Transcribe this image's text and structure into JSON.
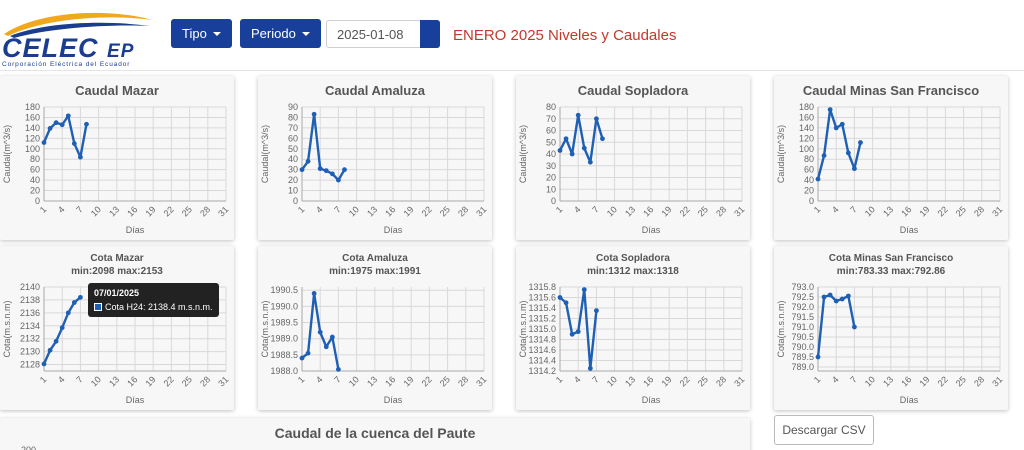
{
  "header": {
    "logo_text": "CELEC",
    "logo_suffix": "EP",
    "logo_subtitle": "Corporación Eléctrica del Ecuador",
    "tipo_label": "Tipo",
    "periodo_label": "Periodo",
    "date_value": "2025-01-08",
    "page_title": "ENERO 2025 Niveles y Caudales",
    "colors": {
      "brand_blue": "#183f9a",
      "title_red": "#c0392b",
      "series": "#1f5fb4"
    }
  },
  "tooltip": {
    "title": "07/01/2025",
    "text": "Cota H24: 2138.4 m.s.n.m."
  },
  "download_label": "Descargar CSV",
  "x_ticks": [
    "1",
    "4",
    "7",
    "10",
    "13",
    "16",
    "19",
    "22",
    "25",
    "28",
    "31"
  ],
  "charts": [
    {
      "title": "Caudal Mazar",
      "ylabel": "Caudal(m^3/s)",
      "xlabel": "Días",
      "yticks": [
        "0",
        "20",
        "40",
        "60",
        "80",
        "100",
        "120",
        "140",
        "160",
        "180"
      ]
    },
    {
      "title": "Caudal Amaluza",
      "ylabel": "Caudal(m^3/s)",
      "xlabel": "Días",
      "yticks": [
        "0",
        "10",
        "20",
        "30",
        "40",
        "50",
        "60",
        "70",
        "80",
        "90"
      ]
    },
    {
      "title": "Caudal Sopladora",
      "ylabel": "Caudal(m^3/s)",
      "xlabel": "Días",
      "yticks": [
        "0",
        "10",
        "20",
        "30",
        "40",
        "50",
        "60",
        "70",
        "80"
      ]
    },
    {
      "title": "Caudal Minas San Francisco",
      "ylabel": "Caudal(m^3/s)",
      "xlabel": "Días",
      "yticks": [
        "0",
        "20",
        "40",
        "60",
        "80",
        "100",
        "120",
        "140",
        "160",
        "180"
      ]
    },
    {
      "title": "Cota Mazar",
      "subtitle": "min:2098     max:2153",
      "ylabel": "Cota(m.s.n.m)",
      "xlabel": "Días",
      "yticks": [
        "2128",
        "2130",
        "2132",
        "2134",
        "2136",
        "2138",
        "2140"
      ]
    },
    {
      "title": "Cota Amaluza",
      "subtitle": "min:1975     max:1991",
      "ylabel": "Cota(m.s.n.m)",
      "xlabel": "Días",
      "yticks": [
        "1988.0",
        "1988.5",
        "1989.0",
        "1989.5",
        "1990.0",
        "1990.5"
      ]
    },
    {
      "title": "Cota Sopladora",
      "subtitle": "min:1312     max:1318",
      "ylabel": "Cota(m.s.n.m)",
      "xlabel": "Días",
      "yticks": [
        "1314.2",
        "1314.4",
        "1314.6",
        "1314.8",
        "1315.0",
        "1315.2",
        "1315.4",
        "1315.6",
        "1315.8"
      ]
    },
    {
      "title": "Cota Minas San Francisco",
      "subtitle": "min:783.33     max:792.86",
      "ylabel": "Cota(m.s.n.m)",
      "xlabel": "Días",
      "yticks": [
        "789.0",
        "789.5",
        "790.0",
        "790.5",
        "791.0",
        "791.5",
        "792.0",
        "792.5",
        "793.0"
      ]
    }
  ],
  "basin_title": "Caudal de la cuenca del Paute",
  "basin_ytick": "200",
  "chart_data": [
    {
      "type": "line",
      "title": "Caudal Mazar",
      "xlim": [
        1,
        31
      ],
      "ylim": [
        0,
        180
      ],
      "x": [
        1,
        2,
        3,
        4,
        5,
        6,
        7,
        8
      ],
      "values": [
        112,
        139,
        150,
        146,
        163,
        110,
        84,
        147
      ]
    },
    {
      "type": "line",
      "title": "Caudal Amaluza",
      "xlim": [
        1,
        31
      ],
      "ylim": [
        0,
        90
      ],
      "x": [
        1,
        2,
        3,
        4,
        5,
        6,
        7,
        8
      ],
      "values": [
        30,
        38,
        83,
        31,
        29,
        26,
        20,
        30
      ]
    },
    {
      "type": "line",
      "title": "Caudal Sopladora",
      "xlim": [
        1,
        31
      ],
      "ylim": [
        0,
        80
      ],
      "x": [
        1,
        2,
        3,
        4,
        5,
        6,
        7,
        8
      ],
      "values": [
        43,
        53,
        40,
        73,
        45,
        33,
        70,
        53
      ]
    },
    {
      "type": "line",
      "title": "Caudal Minas San Francisco",
      "xlim": [
        1,
        31
      ],
      "ylim": [
        0,
        180
      ],
      "x": [
        1,
        2,
        3,
        4,
        5,
        6,
        7,
        8
      ],
      "values": [
        42,
        87,
        175,
        140,
        147,
        92,
        62,
        112
      ]
    },
    {
      "type": "line",
      "title": "Cota Mazar",
      "xlim": [
        1,
        31
      ],
      "ylim": [
        2127,
        2140
      ],
      "x": [
        1,
        2,
        3,
        4,
        5,
        6,
        7
      ],
      "values": [
        2128.1,
        2130.2,
        2131.6,
        2133.7,
        2136.0,
        2137.6,
        2138.4
      ]
    },
    {
      "type": "line",
      "title": "Cota Amaluza",
      "xlim": [
        1,
        31
      ],
      "ylim": [
        1988.0,
        1990.6
      ],
      "x": [
        1,
        2,
        3,
        4,
        5,
        6,
        7
      ],
      "values": [
        1988.4,
        1988.55,
        1990.4,
        1989.2,
        1988.75,
        1989.05,
        1988.05
      ]
    },
    {
      "type": "line",
      "title": "Cota Sopladora",
      "xlim": [
        1,
        31
      ],
      "ylim": [
        1314.2,
        1315.8
      ],
      "x": [
        1,
        2,
        3,
        4,
        5,
        6,
        7
      ],
      "values": [
        1315.6,
        1315.5,
        1314.9,
        1314.95,
        1315.75,
        1314.25,
        1315.35
      ]
    },
    {
      "type": "line",
      "title": "Cota Minas San Francisco",
      "xlim": [
        1,
        31
      ],
      "ylim": [
        788.8,
        793.0
      ],
      "x": [
        1,
        2,
        3,
        4,
        5,
        6,
        7
      ],
      "values": [
        789.5,
        792.5,
        792.6,
        792.3,
        792.4,
        792.55,
        791.0
      ]
    }
  ]
}
